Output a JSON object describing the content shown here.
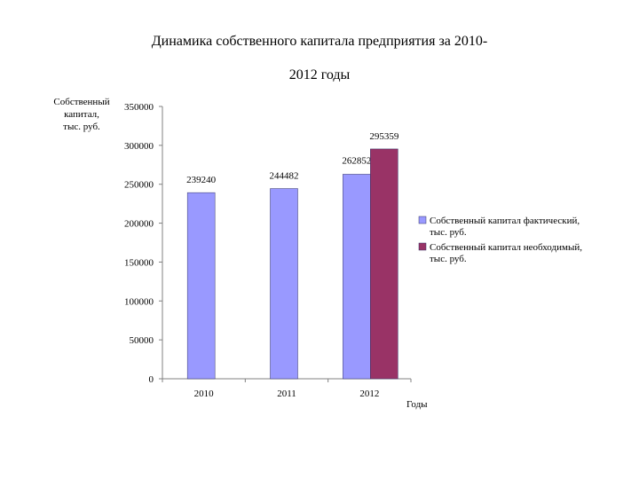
{
  "title_line1": "Динамика собственного капитала предприятия за 2010-",
  "title_line2": "2012 годы",
  "chart_data": {
    "type": "bar",
    "categories": [
      "2010",
      "2011",
      "2012"
    ],
    "series": [
      {
        "name": "Собственный капитал фактический, тыс. руб.",
        "name_lines": [
          "Собственный капитал фактический,",
          "тыс. руб."
        ],
        "color": "#9999ff",
        "values": [
          239240,
          244482,
          262852
        ]
      },
      {
        "name": "Собственный капитал необходимый, тыс. руб.",
        "name_lines": [
          "Собственный капитал необходимый,",
          "тыс. руб."
        ],
        "color": "#993366",
        "values": [
          null,
          null,
          295359
        ]
      }
    ],
    "ylabel_lines": [
      "Собственный",
      "капитал,",
      "тыс. руб."
    ],
    "xlabel": "Годы",
    "ylim": [
      0,
      350000
    ],
    "yticks": [
      "0",
      "50000",
      "100000",
      "150000",
      "200000",
      "250000",
      "300000",
      "350000"
    ],
    "grid": false,
    "legend": "right"
  }
}
